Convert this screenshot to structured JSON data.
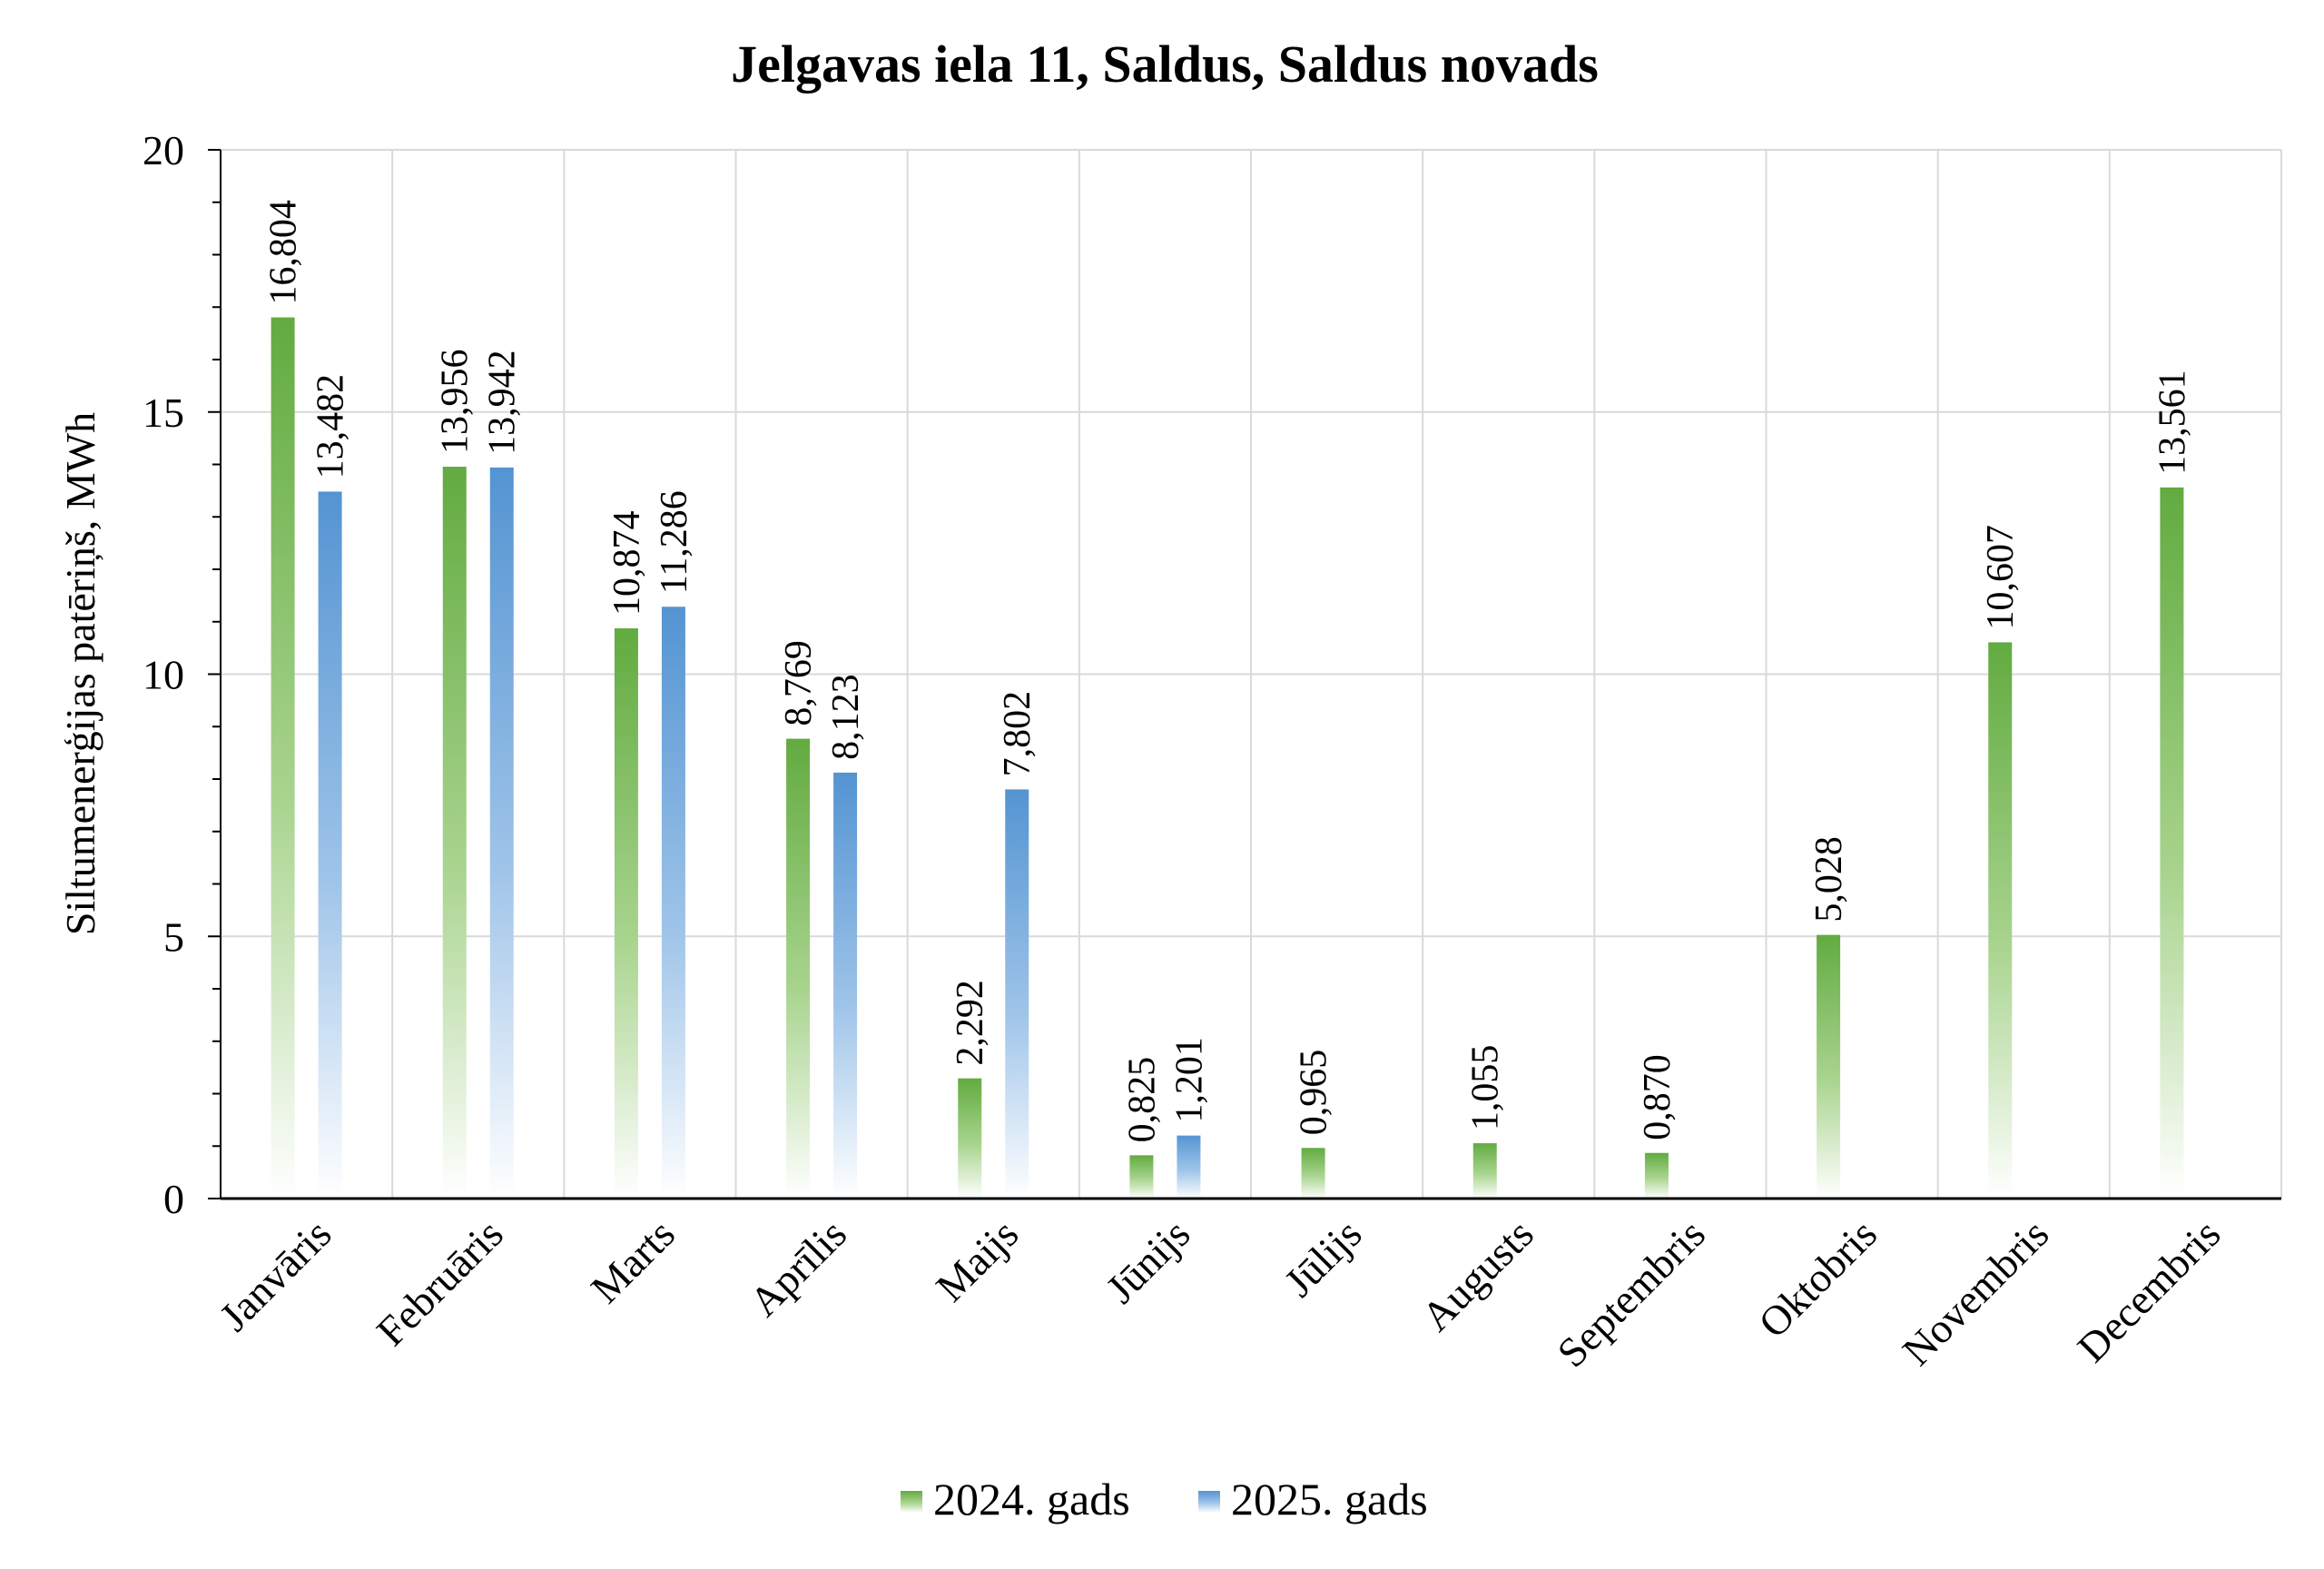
{
  "chart_data": {
    "type": "bar",
    "title": "Jelgavas iela 11, Saldus, Saldus novads",
    "ylabel": "Siltumenerģijas patēriņš, MWh",
    "xlabel": "",
    "ylim": [
      0,
      20
    ],
    "yticks": [
      0,
      5,
      10,
      15,
      20
    ],
    "grid": true,
    "legend_position": "bottom",
    "categories": [
      "Janvāris",
      "Februāris",
      "Marts",
      "Aprīlis",
      "Maijs",
      "Jūnijs",
      "Jūlijs",
      "Augusts",
      "Septembris",
      "Oktobris",
      "Novembris",
      "Decembris"
    ],
    "series": [
      {
        "name": "2024. gads",
        "color": "#6ab04c",
        "values": [
          16.804,
          13.956,
          10.874,
          8.769,
          2.292,
          0.825,
          0.965,
          1.055,
          0.87,
          5.028,
          10.607,
          13.561
        ],
        "labels": [
          "16,804",
          "13,956",
          "10,874",
          "8,769",
          "2,292",
          "0,825",
          "0,965",
          "1,055",
          "0,870",
          "5,028",
          "10,607",
          "13,561"
        ]
      },
      {
        "name": "2025. gads",
        "color": "#5b9bd5",
        "values": [
          13.482,
          13.942,
          11.286,
          8.123,
          7.802,
          1.201,
          null,
          null,
          null,
          null,
          null,
          null
        ],
        "labels": [
          "13,482",
          "13,942",
          "11,286",
          "8,123",
          "7,802",
          "1,201",
          null,
          null,
          null,
          null,
          null,
          null
        ]
      }
    ]
  }
}
